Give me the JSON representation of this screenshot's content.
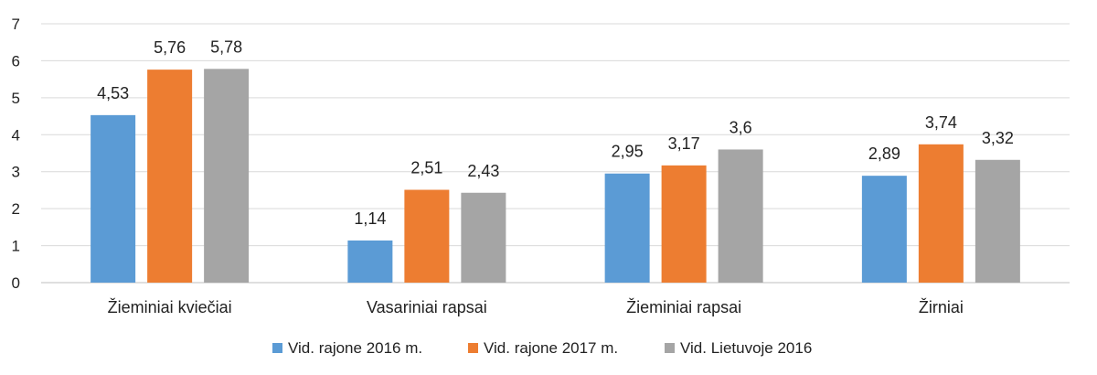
{
  "chart_data": {
    "type": "bar",
    "categories": [
      "Žieminiai kviečiai",
      "Vasariniai rapsai",
      "Žieminiai rapsai",
      "Žirniai"
    ],
    "series": [
      {
        "name": "Vid. rajone 2016 m.",
        "color": "#5b9bd5",
        "values": [
          4.53,
          1.14,
          2.95,
          2.89
        ],
        "labels": [
          "4,53",
          "1,14",
          "2,95",
          "2,89"
        ]
      },
      {
        "name": "Vid. rajone 2017 m.",
        "color": "#ed7d31",
        "values": [
          5.76,
          2.51,
          3.17,
          3.74
        ],
        "labels": [
          "5,76",
          "2,51",
          "3,17",
          "3,74"
        ]
      },
      {
        "name": "Vid. Lietuvoje 2016",
        "color": "#a5a5a5",
        "values": [
          5.78,
          2.43,
          3.6,
          3.32
        ],
        "labels": [
          "5,78",
          "2,43",
          "3,6",
          "3,32"
        ]
      }
    ],
    "yticks": [
      "0",
      "1",
      "2",
      "3",
      "4",
      "5",
      "6",
      "7"
    ],
    "ylim": [
      0,
      7
    ],
    "grid": true,
    "legend_position": "bottom",
    "title": "",
    "xlabel": "",
    "ylabel": ""
  }
}
